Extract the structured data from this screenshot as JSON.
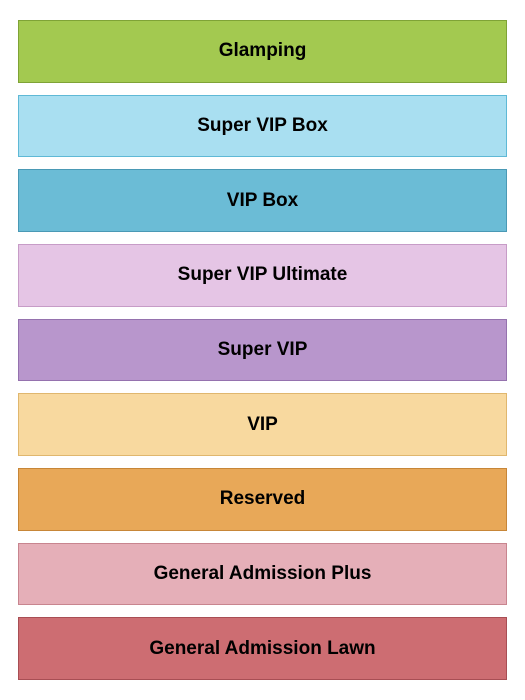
{
  "seating_chart": {
    "type": "infographic",
    "background_color": "#ffffff",
    "label_fontsize": 19,
    "label_fontweight": "bold",
    "label_color": "#000000",
    "row_gap": 12,
    "border_width": 1,
    "sections": [
      {
        "label": "Glamping",
        "fill_color": "#a3c950",
        "border_color": "#7fa336"
      },
      {
        "label": "Super VIP Box",
        "fill_color": "#a9dff1",
        "border_color": "#5fb9d6"
      },
      {
        "label": "VIP Box",
        "fill_color": "#6bbcd6",
        "border_color": "#4a99b5"
      },
      {
        "label": "Super VIP Ultimate",
        "fill_color": "#e5c5e5",
        "border_color": "#c79cc7"
      },
      {
        "label": "Super VIP",
        "fill_color": "#b896cc",
        "border_color": "#9572ae"
      },
      {
        "label": "VIP",
        "fill_color": "#f8d99f",
        "border_color": "#e0b76e"
      },
      {
        "label": "Reserved",
        "fill_color": "#e8a858",
        "border_color": "#c78638"
      },
      {
        "label": "General Admission Plus",
        "fill_color": "#e5afb8",
        "border_color": "#c8858f"
      },
      {
        "label": "General Admission Lawn",
        "fill_color": "#cd6d72",
        "border_color": "#a84e54"
      }
    ]
  }
}
